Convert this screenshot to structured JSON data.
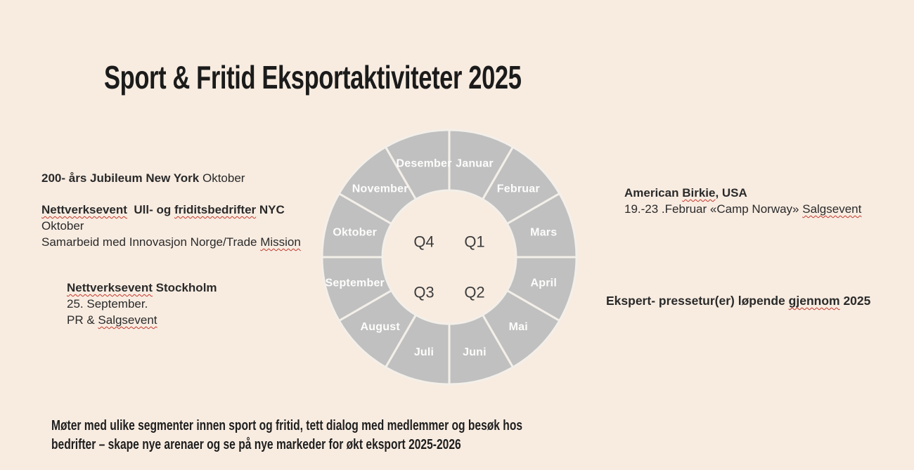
{
  "slide": {
    "title": "Sport & Fritid Eksportaktiviteter 2025",
    "background_color": "#f8ece1",
    "text_color": "#2a2a2a",
    "spellcheck_color": "#c4372a"
  },
  "annotations": {
    "left_top": {
      "lines": [
        [
          {
            "text": "200- års Jubileum New York",
            "bold": true
          },
          {
            "text": " Oktober"
          }
        ]
      ]
    },
    "left_mid": {
      "lines": [
        [
          {
            "text": "Nettverksevent",
            "bold": true,
            "squiggle": true
          },
          {
            "text": "  ",
            "bold": true
          },
          {
            "text": "Ull- og ",
            "bold": true
          },
          {
            "text": "friditsbedrifter",
            "bold": true,
            "squiggle": true
          },
          {
            "text": " NYC",
            "bold": true
          }
        ],
        [
          {
            "text": "Oktober"
          }
        ],
        [
          {
            "text": "Samarbeid med Innovasjon Norge/Trade "
          },
          {
            "text": "Mission",
            "squiggle": true
          }
        ]
      ]
    },
    "left_bottom": {
      "lines": [
        [
          {
            "text": "Nettverksevent",
            "bold": true,
            "squiggle": true
          },
          {
            "text": " Stockholm",
            "bold": true
          }
        ],
        [
          {
            "text": "25. September."
          }
        ],
        [
          {
            "text": "PR & "
          },
          {
            "text": "Salgsevent",
            "squiggle": true
          }
        ]
      ]
    },
    "right_top": {
      "lines": [
        [
          {
            "text": "American ",
            "bold": true
          },
          {
            "text": "Birkie",
            "bold": true,
            "squiggle": true
          },
          {
            "text": ", USA",
            "bold": true
          }
        ],
        [
          {
            "text": "19.-23 .Februar «Camp Norway» "
          },
          {
            "text": "Salgsevent",
            "squiggle": true
          }
        ]
      ]
    },
    "right_mid": {
      "lines": [
        [
          {
            "text": "Ekspert- pressetur(er) løpende ",
            "bold": true
          },
          {
            "text": "gjennom",
            "bold": true,
            "squiggle": true
          },
          {
            "text": " 2025",
            "bold": true
          }
        ]
      ]
    },
    "bottom_note": {
      "lines": [
        [
          {
            "text": "Møter med ulike segmenter innen sport og fritid, tett dialog med medlemmer og besøk hos"
          }
        ],
        [
          {
            "text": "bedrifter – skape nye arenaer og se på nye markeder for økt eksport 2025-2026"
          }
        ]
      ]
    }
  },
  "wheel": {
    "type": "donut-month-wheel",
    "months": [
      "Januar",
      "Februar",
      "Mars",
      "April",
      "Mai",
      "Juni",
      "Juli",
      "August",
      "September",
      "Oktober",
      "November",
      "Desember"
    ],
    "quarters": [
      "Q1",
      "Q2",
      "Q3",
      "Q4"
    ],
    "segment_color": "#c1c0c0",
    "separator_color": "#f3efe9",
    "month_label_color": "#fdfdfc",
    "quarter_label_color": "#3d3d3d"
  }
}
